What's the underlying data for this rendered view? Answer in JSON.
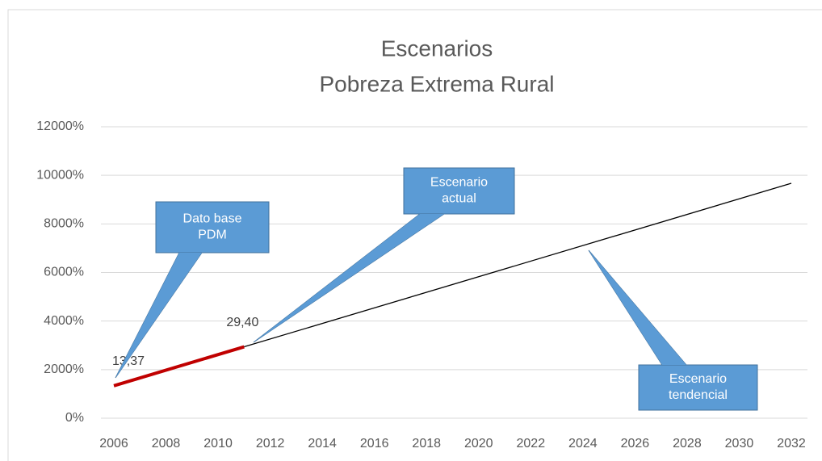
{
  "chart_data": {
    "type": "line",
    "title": [
      "Escenarios",
      "Pobreza Extrema Rural"
    ],
    "xlim": [
      2006,
      2032
    ],
    "xticks": [
      2006,
      2008,
      2010,
      2012,
      2014,
      2016,
      2018,
      2020,
      2022,
      2024,
      2026,
      2028,
      2030,
      2032
    ],
    "ylim": [
      0,
      12000
    ],
    "yticks": [
      {
        "value": 0,
        "label": "0%"
      },
      {
        "value": 2000,
        "label": "2000%"
      },
      {
        "value": 4000,
        "label": "4000%"
      },
      {
        "value": 6000,
        "label": "6000%"
      },
      {
        "value": 8000,
        "label": "8000%"
      },
      {
        "value": 10000,
        "label": "10000%"
      },
      {
        "value": 12000,
        "label": "12000%"
      }
    ],
    "grid": true,
    "series": [
      {
        "color": "#c00000",
        "x": [
          2006,
          2011
        ],
        "values": [
          1337,
          2940
        ],
        "value_labels": [
          "13,37",
          "29,40"
        ]
      },
      {
        "color": "#000000",
        "x": [
          2011,
          2032
        ],
        "values": [
          2940,
          9673
        ]
      }
    ],
    "annotations": [
      {
        "lines": [
          "Dato base",
          "PDM"
        ]
      },
      {
        "lines": [
          "Escenario",
          "actual"
        ]
      },
      {
        "lines": [
          "Escenario",
          "tendencial"
        ]
      }
    ]
  }
}
